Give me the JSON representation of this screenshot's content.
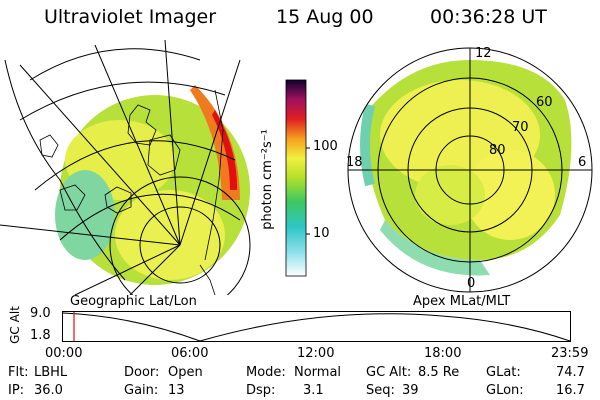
{
  "header": {
    "instrument": "Ultraviolet Imager",
    "date": "15 Aug 00",
    "time": "00:36:28 UT"
  },
  "left_panel": {
    "caption": "Geographic Lat/Lon"
  },
  "right_panel": {
    "caption": "Apex MLat/MLT",
    "mlt_labels": [
      "12",
      "18",
      "6",
      "0"
    ],
    "mlat_labels": [
      "60",
      "70",
      "80"
    ]
  },
  "colorbar": {
    "unit_label": "photon cm⁻²s⁻¹",
    "ticks": [
      "100",
      "10"
    ]
  },
  "altitude_plot": {
    "ylabel": "GC Alt",
    "y_ticks": [
      "9.0",
      "1.8"
    ],
    "x_ticks": [
      "00:00",
      "06:00",
      "12:00",
      "18:00",
      "23:59"
    ]
  },
  "status": {
    "filter_label": "Flt:",
    "filter_value": "LBHL",
    "ip_label": "IP:",
    "ip_value": "36.0",
    "door_label": "Door:",
    "door_value": "Open",
    "gain_label": "Gain:",
    "gain_value": "13",
    "mode_label": "Mode:",
    "mode_value": "Normal",
    "dsp_label": "Dsp:",
    "dsp_value": "3.1",
    "gcalt_label": "GC Alt:",
    "gcalt_value": "8.5 Re",
    "seq_label": "Seq:",
    "seq_value": "39",
    "glat_label": "GLat:",
    "glat_value": "74.7",
    "glon_label": "GLon:",
    "glon_value": "16.7"
  },
  "colors": {
    "low": "#8de0e8",
    "mid": "#c8ea3a",
    "high": "#f3f560",
    "peak": "#e01010"
  }
}
